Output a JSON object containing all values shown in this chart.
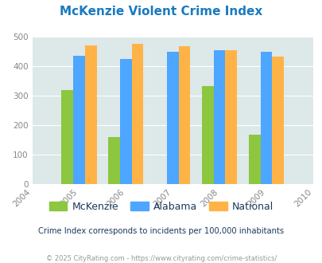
{
  "title": "McKenzie Violent Crime Index",
  "years": [
    2004,
    2005,
    2006,
    2007,
    2008,
    2009,
    2010
  ],
  "bar_years": [
    2005,
    2006,
    2007,
    2008,
    2009
  ],
  "mckenzie": [
    318,
    160,
    0,
    332,
    168
  ],
  "alabama": [
    435,
    425,
    448,
    455,
    450
  ],
  "national": [
    470,
    475,
    468,
    455,
    432
  ],
  "color_mckenzie": "#8dc63f",
  "color_alabama": "#4da6ff",
  "color_national": "#ffb347",
  "bg_color": "#dde8e8",
  "title_color": "#1a7abf",
  "legend_label_color": "#1a3a5c",
  "subtitle_color": "#1a3a5c",
  "footer_color": "#999999",
  "footer_link_color": "#4da6ff",
  "ytick_color": "#888888",
  "xtick_color": "#888888",
  "ylim": [
    0,
    500
  ],
  "yticks": [
    0,
    100,
    200,
    300,
    400,
    500
  ],
  "subtitle": "Crime Index corresponds to incidents per 100,000 inhabitants",
  "footer": "© 2025 CityRating.com - https://www.cityrating.com/crime-statistics/"
}
